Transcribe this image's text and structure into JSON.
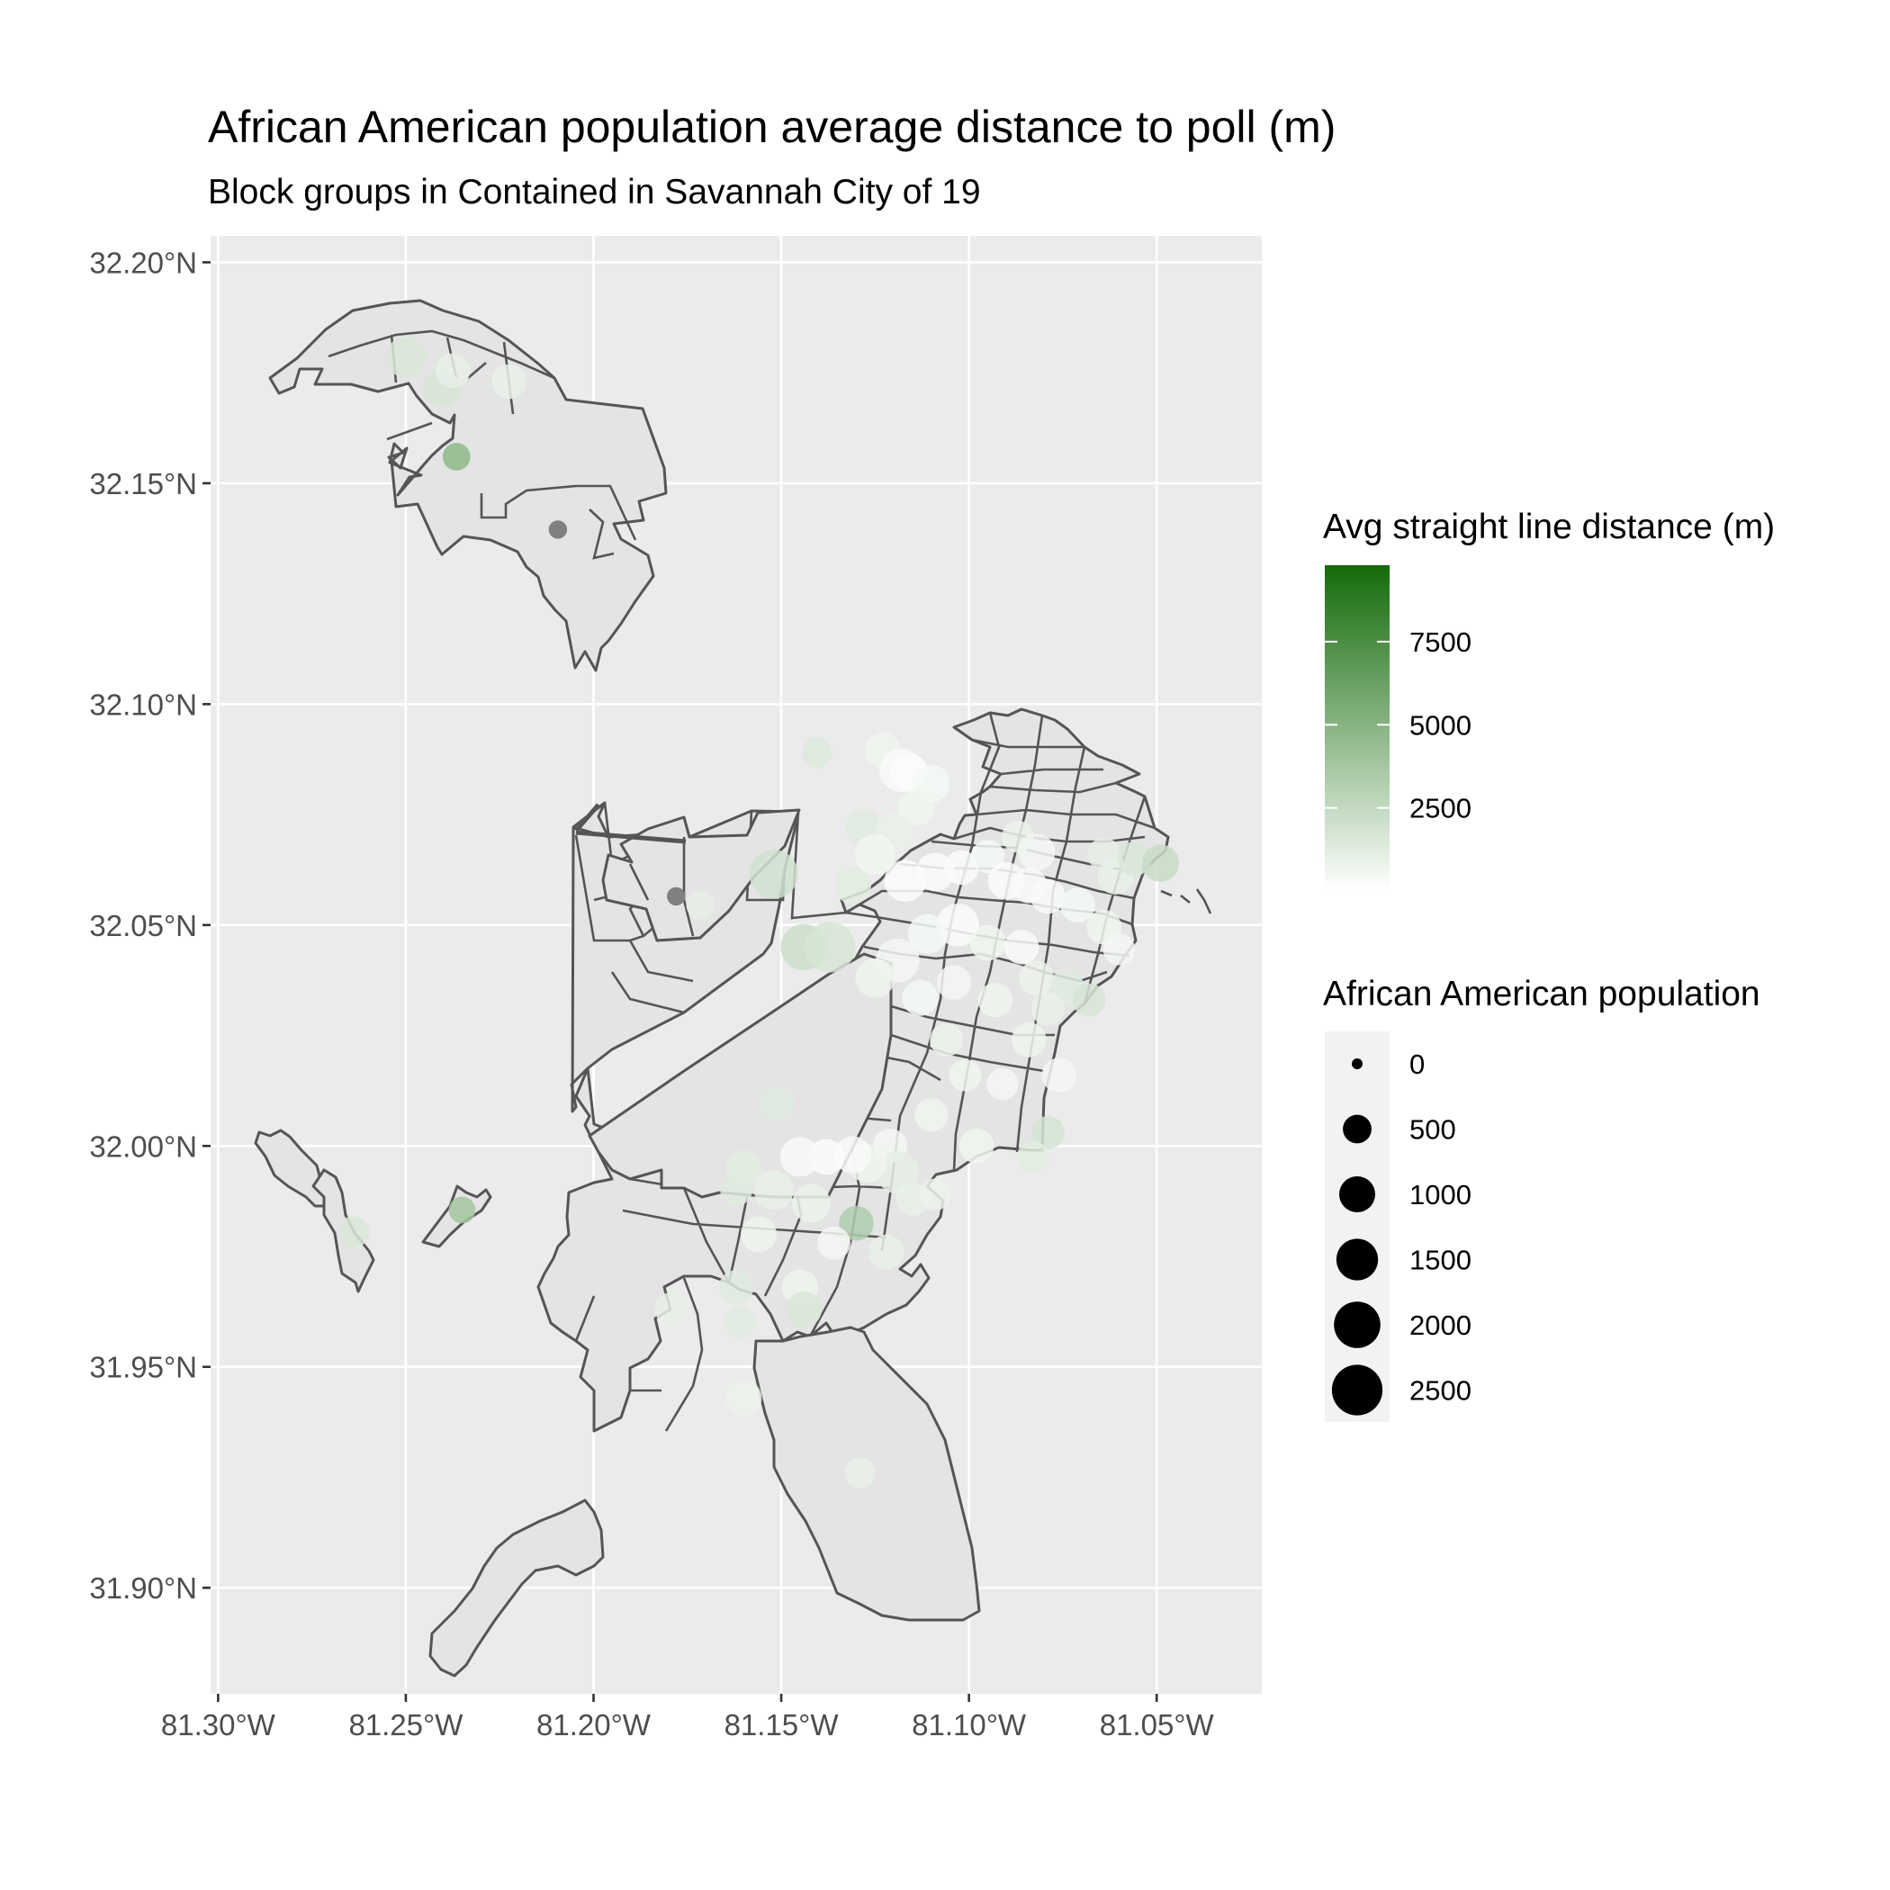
{
  "chart_data": {
    "type": "map",
    "title": "African American population average distance to poll (m)",
    "subtitle": "Block groups in Contained in Savannah City of 19",
    "x_axis": {
      "range": [
        -81.302,
        -81.022
      ],
      "ticks": [
        {
          "value": -81.3,
          "label": "81.30°W"
        },
        {
          "value": -81.25,
          "label": "81.25°W"
        },
        {
          "value": -81.2,
          "label": "81.20°W"
        },
        {
          "value": -81.15,
          "label": "81.15°W"
        },
        {
          "value": -81.1,
          "label": "81.10°W"
        },
        {
          "value": -81.05,
          "label": "81.05°W"
        }
      ]
    },
    "y_axis": {
      "range": [
        31.876,
        32.206
      ],
      "ticks": [
        {
          "value": 32.2,
          "label": "32.20°N"
        },
        {
          "value": 32.15,
          "label": "32.15°N"
        },
        {
          "value": 32.1,
          "label": "32.10°N"
        },
        {
          "value": 32.05,
          "label": "32.05°N"
        },
        {
          "value": 32.0,
          "label": "32.00°N"
        },
        {
          "value": 31.95,
          "label": "31.95°N"
        },
        {
          "value": 31.9,
          "label": "31.90°N"
        }
      ]
    },
    "grid": true,
    "colors": {
      "panel_background": "#ebebeb",
      "boundary_fill": "#e4e4e4",
      "boundary_stroke": "#555555",
      "gradient_low": "#ffffff",
      "gradient_high": "#146b0a"
    },
    "color_legend": {
      "title": "Avg straight line distance (m)",
      "range": [
        0,
        9800
      ],
      "ticks": [
        {
          "value": 2500,
          "label": "2500"
        },
        {
          "value": 5000,
          "label": "5000"
        },
        {
          "value": 7500,
          "label": "7500"
        }
      ],
      "position": "right"
    },
    "size_legend": {
      "title": "African American population",
      "range": [
        0,
        2700
      ],
      "entries": [
        {
          "value": 0,
          "label": "0"
        },
        {
          "value": 500,
          "label": "500"
        },
        {
          "value": 1000,
          "label": "1000"
        },
        {
          "value": 1500,
          "label": "1500"
        },
        {
          "value": 2000,
          "label": "2000"
        },
        {
          "value": 2500,
          "label": "2500"
        }
      ],
      "position": "right"
    },
    "points": [
      {
        "lon": -81.25,
        "lat": 32.1785,
        "distance": 1600,
        "population": 1400
      },
      {
        "lon": -81.2405,
        "lat": 32.1715,
        "distance": 1700,
        "population": 1100
      },
      {
        "lon": -81.2375,
        "lat": 32.1755,
        "distance": 1000,
        "population": 900
      },
      {
        "lon": -81.2225,
        "lat": 32.173,
        "distance": 900,
        "population": 900
      },
      {
        "lon": -81.2365,
        "lat": 32.156,
        "distance": 4700,
        "population": 450
      },
      {
        "lon": -81.2095,
        "lat": 32.1395,
        "distance": 9800,
        "population": 90
      },
      {
        "lon": -81.178,
        "lat": 32.0565,
        "distance": 9800,
        "population": 90
      },
      {
        "lon": -81.1715,
        "lat": 32.0545,
        "distance": 1100,
        "population": 500
      },
      {
        "lon": -81.152,
        "lat": 32.0615,
        "distance": 1900,
        "population": 2300
      },
      {
        "lon": -81.1405,
        "lat": 32.089,
        "distance": 1400,
        "population": 600
      },
      {
        "lon": -81.144,
        "lat": 32.045,
        "distance": 2100,
        "population": 2000
      },
      {
        "lon": -81.137,
        "lat": 32.045,
        "distance": 1700,
        "population": 2500
      },
      {
        "lon": -81.131,
        "lat": 32.059,
        "distance": 1200,
        "population": 1100
      },
      {
        "lon": -81.128,
        "lat": 32.072,
        "distance": 1300,
        "population": 1100
      },
      {
        "lon": -81.123,
        "lat": 32.0895,
        "distance": 700,
        "population": 1000
      },
      {
        "lon": -81.118,
        "lat": 32.085,
        "distance": 300,
        "population": 1700
      },
      {
        "lon": -81.116,
        "lat": 32.0845,
        "distance": 200,
        "population": 1200
      },
      {
        "lon": -81.11,
        "lat": 32.082,
        "distance": 400,
        "population": 1100
      },
      {
        "lon": -81.114,
        "lat": 32.0765,
        "distance": 600,
        "population": 1000
      },
      {
        "lon": -81.12,
        "lat": 32.071,
        "distance": 900,
        "population": 1200
      },
      {
        "lon": -81.125,
        "lat": 32.066,
        "distance": 600,
        "population": 1400
      },
      {
        "lon": -81.117,
        "lat": 32.06,
        "distance": 100,
        "population": 1500
      },
      {
        "lon": -81.109,
        "lat": 32.062,
        "distance": 200,
        "population": 1200
      },
      {
        "lon": -81.102,
        "lat": 32.063,
        "distance": 200,
        "population": 900
      },
      {
        "lon": -81.095,
        "lat": 32.0655,
        "distance": 400,
        "population": 800
      },
      {
        "lon": -81.087,
        "lat": 32.07,
        "distance": 800,
        "population": 700
      },
      {
        "lon": -81.082,
        "lat": 32.0665,
        "distance": 500,
        "population": 1100
      },
      {
        "lon": -81.09,
        "lat": 32.06,
        "distance": 200,
        "population": 1100
      },
      {
        "lon": -81.084,
        "lat": 32.059,
        "distance": 300,
        "population": 1000
      },
      {
        "lon": -81.079,
        "lat": 32.0565,
        "distance": 300,
        "population": 900
      },
      {
        "lon": -81.071,
        "lat": 32.0545,
        "distance": 400,
        "population": 900
      },
      {
        "lon": -81.064,
        "lat": 32.066,
        "distance": 1100,
        "population": 800
      },
      {
        "lon": -81.061,
        "lat": 32.061,
        "distance": 900,
        "population": 1000
      },
      {
        "lon": -81.056,
        "lat": 32.065,
        "distance": 1500,
        "population": 900
      },
      {
        "lon": -81.049,
        "lat": 32.064,
        "distance": 2300,
        "population": 1100
      },
      {
        "lon": -81.064,
        "lat": 32.0495,
        "distance": 600,
        "population": 900
      },
      {
        "lon": -81.06,
        "lat": 32.0445,
        "distance": 500,
        "population": 700
      },
      {
        "lon": -81.103,
        "lat": 32.05,
        "distance": 200,
        "population": 1600
      },
      {
        "lon": -81.111,
        "lat": 32.048,
        "distance": 400,
        "population": 1300
      },
      {
        "lon": -81.095,
        "lat": 32.046,
        "distance": 600,
        "population": 1000
      },
      {
        "lon": -81.086,
        "lat": 32.045,
        "distance": 300,
        "population": 900
      },
      {
        "lon": -81.119,
        "lat": 32.042,
        "distance": 500,
        "population": 1700
      },
      {
        "lon": -81.125,
        "lat": 32.038,
        "distance": 700,
        "population": 1300
      },
      {
        "lon": -81.113,
        "lat": 32.0335,
        "distance": 400,
        "population": 1000
      },
      {
        "lon": -81.104,
        "lat": 32.037,
        "distance": 500,
        "population": 900
      },
      {
        "lon": -81.093,
        "lat": 32.033,
        "distance": 700,
        "population": 900
      },
      {
        "lon": -81.082,
        "lat": 32.038,
        "distance": 800,
        "population": 900
      },
      {
        "lon": -81.074,
        "lat": 32.036,
        "distance": 1300,
        "population": 900
      },
      {
        "lon": -81.068,
        "lat": 32.033,
        "distance": 1700,
        "population": 800
      },
      {
        "lon": -81.079,
        "lat": 32.031,
        "distance": 900,
        "population": 800
      },
      {
        "lon": -81.084,
        "lat": 32.024,
        "distance": 700,
        "population": 900
      },
      {
        "lon": -81.076,
        "lat": 32.016,
        "distance": 500,
        "population": 900
      },
      {
        "lon": -81.091,
        "lat": 32.014,
        "distance": 500,
        "population": 700
      },
      {
        "lon": -81.101,
        "lat": 32.016,
        "distance": 600,
        "population": 700
      },
      {
        "lon": -81.106,
        "lat": 32.024,
        "distance": 800,
        "population": 800
      },
      {
        "lon": -81.11,
        "lat": 32.007,
        "distance": 600,
        "population": 800
      },
      {
        "lon": -81.079,
        "lat": 32.003,
        "distance": 1800,
        "population": 800
      },
      {
        "lon": -81.083,
        "lat": 31.9975,
        "distance": 1200,
        "population": 700
      },
      {
        "lon": -81.098,
        "lat": 32.0,
        "distance": 600,
        "population": 900
      },
      {
        "lon": -81.121,
        "lat": 32.0,
        "distance": 500,
        "population": 900
      },
      {
        "lon": -81.119,
        "lat": 31.994,
        "distance": 1100,
        "population": 1600
      },
      {
        "lon": -81.127,
        "lat": 31.996,
        "distance": 700,
        "population": 1200
      },
      {
        "lon": -81.131,
        "lat": 31.998,
        "distance": 300,
        "population": 1100
      },
      {
        "lon": -81.138,
        "lat": 31.9975,
        "distance": 200,
        "population": 1000
      },
      {
        "lon": -81.145,
        "lat": 31.9975,
        "distance": 300,
        "population": 1300
      },
      {
        "lon": -81.16,
        "lat": 31.995,
        "distance": 1200,
        "population": 1000
      },
      {
        "lon": -81.152,
        "lat": 31.99,
        "distance": 900,
        "population": 1300
      },
      {
        "lon": -81.162,
        "lat": 31.99,
        "distance": 1300,
        "population": 700
      },
      {
        "lon": -81.142,
        "lat": 31.987,
        "distance": 800,
        "population": 1200
      },
      {
        "lon": -81.13,
        "lat": 31.9825,
        "distance": 3300,
        "population": 900
      },
      {
        "lon": -81.136,
        "lat": 31.978,
        "distance": 500,
        "population": 800
      },
      {
        "lon": -81.156,
        "lat": 31.98,
        "distance": 700,
        "population": 1000
      },
      {
        "lon": -81.162,
        "lat": 31.968,
        "distance": 1300,
        "population": 900
      },
      {
        "lon": -81.145,
        "lat": 31.968,
        "distance": 700,
        "population": 1000
      },
      {
        "lon": -81.144,
        "lat": 31.963,
        "distance": 1600,
        "population": 1000
      },
      {
        "lon": -81.161,
        "lat": 31.96,
        "distance": 1300,
        "population": 700
      },
      {
        "lon": -81.179,
        "lat": 31.963,
        "distance": 1000,
        "population": 900
      },
      {
        "lon": -81.122,
        "lat": 31.976,
        "distance": 900,
        "population": 900
      },
      {
        "lon": -81.115,
        "lat": 31.988,
        "distance": 900,
        "population": 800
      },
      {
        "lon": -81.109,
        "lat": 31.989,
        "distance": 800,
        "population": 700
      },
      {
        "lon": -81.16,
        "lat": 31.943,
        "distance": 800,
        "population": 1000
      },
      {
        "lon": -81.129,
        "lat": 31.926,
        "distance": 900,
        "population": 600
      },
      {
        "lon": -81.151,
        "lat": 32.0095,
        "distance": 1300,
        "population": 900
      },
      {
        "lon": -81.264,
        "lat": 31.9805,
        "distance": 1500,
        "population": 700
      },
      {
        "lon": -81.235,
        "lat": 31.9855,
        "distance": 3800,
        "population": 400
      }
    ]
  }
}
